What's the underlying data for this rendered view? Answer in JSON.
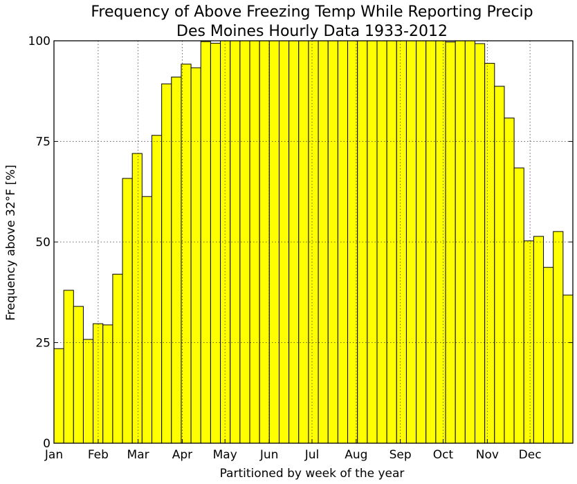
{
  "chart_data": {
    "type": "bar",
    "title": "Frequency of Above Freezing Temp While Reporting Precip",
    "subtitle": "Des Moines Hourly Data 1933-2012",
    "xlabel": "Partitioned by week of the year",
    "ylabel": "Frequency above 32°F [%]",
    "ylim": [
      0,
      100
    ],
    "xlim": [
      1,
      53
    ],
    "yticks": [
      0,
      25,
      50,
      75,
      100
    ],
    "grid": true,
    "bar_color": "#ffff00",
    "month_ticks": [
      {
        "label": "Jan",
        "week": 1
      },
      {
        "label": "Feb",
        "week": 5.43
      },
      {
        "label": "Mar",
        "week": 9.43
      },
      {
        "label": "Apr",
        "week": 13.86
      },
      {
        "label": "May",
        "week": 18.14
      },
      {
        "label": "Jun",
        "week": 22.57
      },
      {
        "label": "Jul",
        "week": 26.86
      },
      {
        "label": "Aug",
        "week": 31.29
      },
      {
        "label": "Sep",
        "week": 35.71
      },
      {
        "label": "Oct",
        "week": 40
      },
      {
        "label": "Nov",
        "week": 44.43
      },
      {
        "label": "Dec",
        "week": 48.71
      }
    ],
    "values": [
      23.5,
      38,
      34,
      25.8,
      29.7,
      29.4,
      42,
      65.8,
      72,
      61.3,
      76.5,
      89.3,
      91,
      94.2,
      93.3,
      99.8,
      99.4,
      100,
      100,
      100,
      100,
      100,
      100,
      100,
      100,
      100,
      100,
      100,
      100,
      100,
      100,
      100,
      100,
      100,
      100,
      100,
      100,
      100,
      100,
      100,
      99.7,
      100,
      100,
      99.3,
      94.4,
      88.7,
      80.8,
      68.4,
      50.3,
      51.4,
      43.7,
      52.6,
      36.8
    ]
  }
}
